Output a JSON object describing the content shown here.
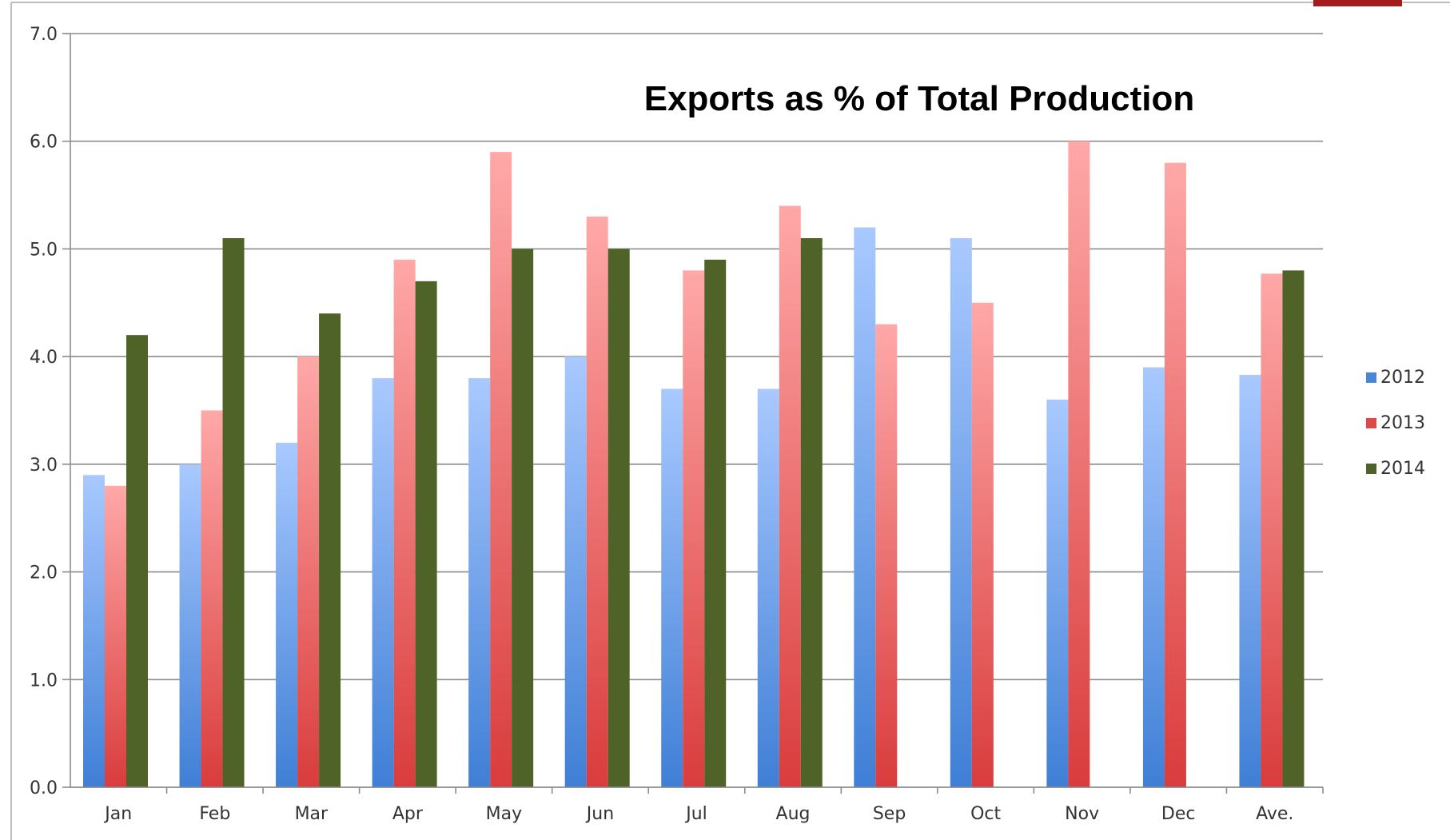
{
  "chart_data": {
    "type": "bar",
    "title": "Exports as % of Total Production",
    "xlabel": "",
    "ylabel": "",
    "ylim": [
      0,
      7
    ],
    "yticks": [
      "0.0",
      "1.0",
      "2.0",
      "3.0",
      "4.0",
      "5.0",
      "6.0",
      "7.0"
    ],
    "grid": true,
    "legend_position": "right",
    "categories": [
      "Jan",
      "Feb",
      "Mar",
      "Apr",
      "May",
      "Jun",
      "Jul",
      "Aug",
      "Sep",
      "Oct",
      "Nov",
      "Dec",
      "Ave."
    ],
    "series": [
      {
        "name": "2012",
        "color": "#4a86d8",
        "values": [
          2.9,
          3.0,
          3.2,
          3.8,
          3.8,
          4.0,
          3.7,
          3.7,
          5.2,
          5.1,
          3.6,
          3.9,
          3.83
        ]
      },
      {
        "name": "2013",
        "color": "#e04848",
        "values": [
          2.8,
          3.5,
          4.0,
          4.9,
          5.9,
          5.3,
          4.8,
          5.4,
          4.3,
          4.5,
          6.0,
          5.8,
          4.77
        ]
      },
      {
        "name": "2014",
        "color": "#4f6228",
        "values": [
          4.2,
          5.1,
          4.4,
          4.7,
          5.0,
          5.0,
          4.9,
          5.1,
          null,
          null,
          null,
          null,
          4.8
        ]
      }
    ]
  },
  "accent_color": "#a51c1c"
}
